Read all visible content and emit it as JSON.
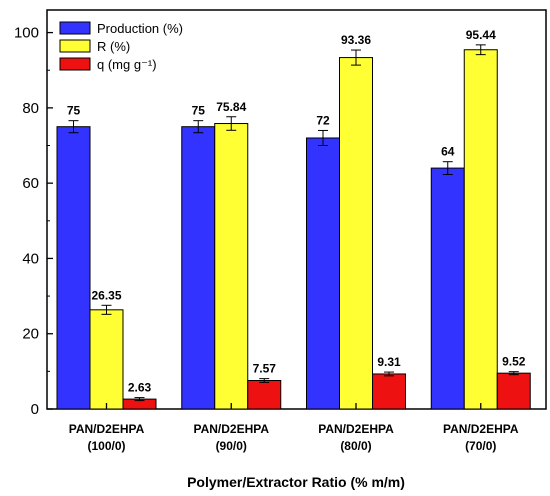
{
  "chart_data": {
    "type": "bar",
    "title": "",
    "xlabel": "Polymer/Extractor Ratio (% m/m)",
    "ylabel": "",
    "ylim": [
      0,
      106
    ],
    "yticks": [
      "0",
      "20",
      "40",
      "60",
      "80",
      "100"
    ],
    "grid": false,
    "legend_position": "top-left",
    "categories": [
      {
        "line1": "PAN/D2EHPA",
        "line2": "(100/0)"
      },
      {
        "line1": "PAN/D2EHPA",
        "line2": "(90/0)"
      },
      {
        "line1": "PAN/D2EHPA",
        "line2": "(80/0)"
      },
      {
        "line1": "PAN/D2EHPA",
        "line2": "(70/0)"
      }
    ],
    "series": [
      {
        "name": "Production (%)",
        "color": "#3333ff",
        "values": [
          75,
          75,
          72,
          64
        ],
        "errors": [
          1.6,
          1.6,
          2.0,
          1.7
        ],
        "labels": [
          "75",
          "75",
          "72",
          "64"
        ]
      },
      {
        "name": "R (%)",
        "color": "#ffff33",
        "values": [
          26.35,
          75.84,
          93.36,
          95.44
        ],
        "errors": [
          1.2,
          1.8,
          2.0,
          1.3
        ],
        "labels": [
          "26.35",
          "75.84",
          "93.36",
          "95.44"
        ]
      },
      {
        "name": "q (mg g⁻¹)",
        "color": "#ee1111",
        "values": [
          2.63,
          7.57,
          9.31,
          9.52
        ],
        "errors": [
          0.4,
          0.5,
          0.5,
          0.4
        ],
        "labels": [
          "2.63",
          "7.57",
          "9.31",
          "9.52"
        ]
      }
    ]
  }
}
